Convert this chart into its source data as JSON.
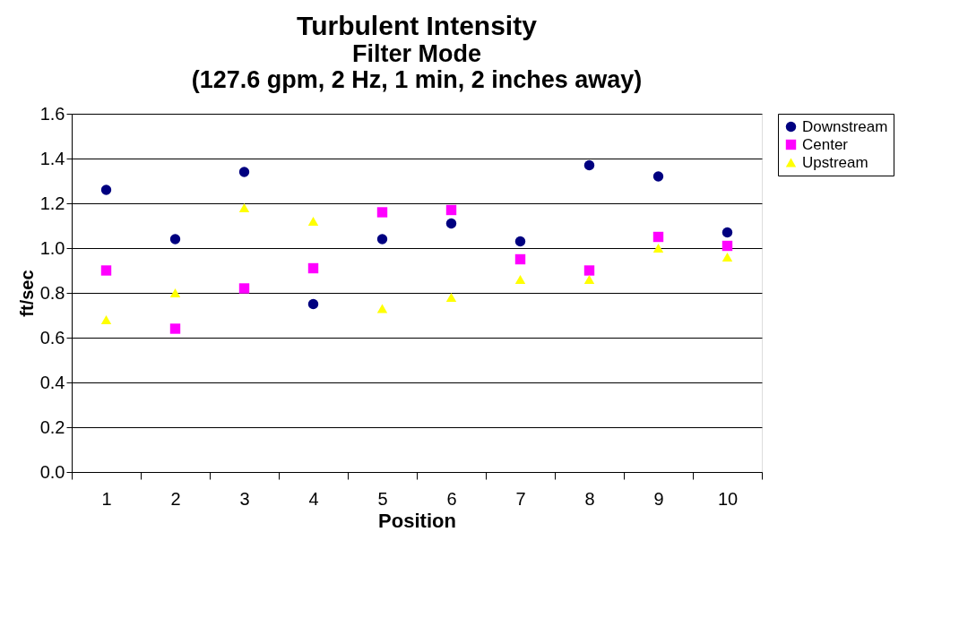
{
  "chart_data": {
    "type": "scatter",
    "title": "Turbulent Intensity",
    "subtitle": "Filter Mode\n(127.6 gpm, 2 Hz, 1 min, 2 inches away)",
    "xlabel": "Position",
    "ylabel": "ft/sec",
    "categories": [
      "1",
      "2",
      "3",
      "4",
      "5",
      "6",
      "7",
      "8",
      "9",
      "10"
    ],
    "series": [
      {
        "name": "Downstream",
        "color": "#000080",
        "marker": "circle",
        "values": [
          1.26,
          1.04,
          1.34,
          0.75,
          1.04,
          1.11,
          1.03,
          1.37,
          1.32,
          1.07
        ]
      },
      {
        "name": "Center",
        "color": "#ff00ff",
        "marker": "square",
        "values": [
          0.9,
          0.64,
          0.82,
          0.91,
          1.16,
          1.17,
          0.95,
          0.9,
          1.05,
          1.01
        ]
      },
      {
        "name": "Upstream",
        "color": "#ffff00",
        "marker": "triangle",
        "values": [
          0.68,
          0.8,
          1.18,
          1.12,
          0.73,
          0.78,
          0.86,
          0.86,
          1.0,
          0.96
        ]
      }
    ],
    "ylim": [
      0,
      1.6
    ],
    "yticks": [
      {
        "value": 0,
        "label": "0.0"
      },
      0.2,
      0.4,
      0.6,
      0.8,
      {
        "value": 1,
        "label": "1.0"
      },
      1.2,
      1.4,
      1.6
    ],
    "grid": "y",
    "legend": "right"
  }
}
